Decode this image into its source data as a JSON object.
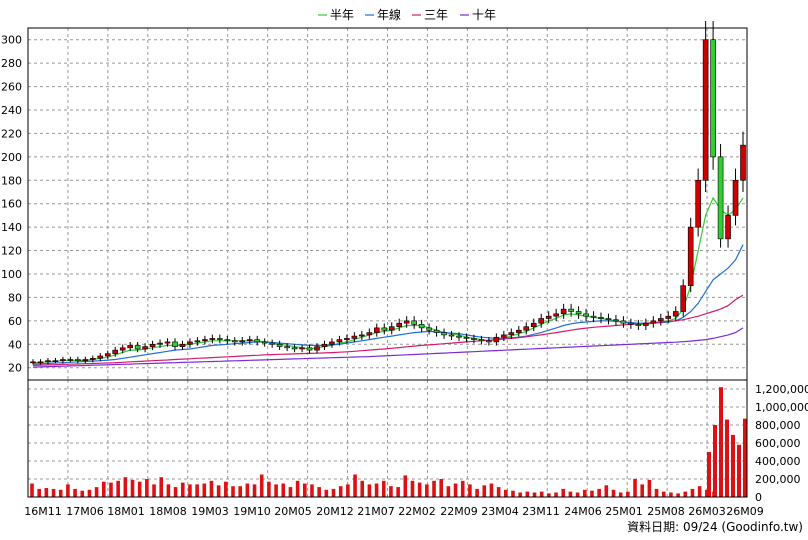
{
  "chart_data": {
    "type": "candlestick",
    "legend": {
      "placement": "top-center",
      "items": [
        {
          "label": "半年",
          "color": "#33cc33"
        },
        {
          "label": "年線",
          "color": "#1f6fd6"
        },
        {
          "label": "三年",
          "color": "#d61a6b"
        },
        {
          "label": "十年",
          "color": "#7a2bd6"
        }
      ]
    },
    "colors": {
      "up": "#cc0000",
      "down": "#33cc33",
      "volume": "#dd1111"
    },
    "grid": true,
    "x_ticks": [
      "16M11",
      "17M06",
      "18M01",
      "18M08",
      "19M03",
      "19M10",
      "20M05",
      "20M12",
      "21M07",
      "22M02",
      "22M09",
      "23M04",
      "23M11",
      "24M06",
      "25M01",
      "25M08",
      "26M03",
      "26M09"
    ],
    "price_axis": {
      "min": 20,
      "max": 310,
      "ticks": [
        20,
        40,
        60,
        80,
        100,
        120,
        140,
        160,
        180,
        200,
        220,
        240,
        260,
        280,
        300
      ]
    },
    "volume_axis": {
      "min": 0,
      "max": 1300000,
      "ticks": [
        "0",
        "200,000",
        "400,000",
        "600,000",
        "800,000",
        "1,000,000",
        "1,200,000"
      ],
      "tick_values": [
        0,
        200000,
        400000,
        600000,
        800000,
        1000000,
        1200000
      ]
    },
    "price_close": [
      25,
      25,
      26,
      26,
      27,
      27,
      26,
      27,
      28,
      30,
      32,
      35,
      37,
      39,
      36,
      38,
      40,
      41,
      42,
      38,
      40,
      42,
      43,
      44,
      45,
      44,
      43,
      42,
      43,
      44,
      42,
      41,
      40,
      38,
      37,
      36,
      37,
      35,
      38,
      40,
      42,
      44,
      45,
      47,
      48,
      50,
      54,
      52,
      55,
      58,
      60,
      57,
      54,
      52,
      50,
      48,
      47,
      46,
      45,
      44,
      43,
      42,
      46,
      48,
      50,
      52,
      55,
      58,
      62,
      64,
      66,
      70,
      68,
      66,
      64,
      63,
      62,
      61,
      60,
      58,
      57,
      56,
      58,
      60,
      62,
      64,
      68,
      90,
      140,
      180,
      300,
      200,
      130,
      150,
      180,
      210
    ],
    "ma_half": [
      24,
      24.5,
      25,
      25.5,
      26,
      26.5,
      26,
      26.5,
      27,
      28,
      29,
      31,
      33,
      35,
      35,
      36,
      37,
      38,
      39,
      39,
      39,
      40,
      41,
      42,
      43,
      43,
      43,
      43,
      43,
      43,
      43,
      42,
      41,
      40,
      39,
      38,
      37,
      36,
      37,
      38,
      39,
      41,
      42,
      44,
      46,
      48,
      50,
      51,
      52,
      54,
      56,
      56,
      56,
      54,
      52,
      50,
      49,
      48,
      46,
      45,
      44,
      43,
      44,
      45,
      47,
      49,
      51,
      54,
      57,
      60,
      62,
      65,
      66,
      65,
      64,
      63,
      62,
      61,
      60,
      59,
      58,
      57,
      57,
      58,
      59,
      60,
      62,
      70,
      90,
      120,
      150,
      165,
      155,
      150,
      155,
      165
    ],
    "ma_year": [
      23,
      23.3,
      23.6,
      24,
      24.3,
      24.6,
      25,
      25.3,
      25.6,
      26,
      26.5,
      27,
      28,
      29,
      30,
      31,
      32,
      33,
      34,
      35,
      35.5,
      36,
      37,
      38,
      39,
      39.5,
      40,
      40.5,
      41,
      41.5,
      42,
      42,
      41.5,
      41,
      40.5,
      40,
      39.5,
      39,
      39,
      39,
      39.5,
      40,
      41,
      42,
      43,
      44,
      45,
      46,
      47,
      48,
      49,
      50,
      50.5,
      51,
      50.5,
      50,
      49.5,
      49,
      48,
      47,
      46,
      45.5,
      45,
      45,
      45.5,
      46,
      47,
      48.5,
      50,
      52,
      54,
      56,
      57.5,
      58.5,
      59,
      59.5,
      60,
      60,
      59.5,
      59,
      58.5,
      58,
      58,
      58,
      58.5,
      59,
      60,
      63,
      68,
      75,
      85,
      95,
      100,
      105,
      112,
      125
    ],
    "ma_3yr": [
      22,
      22.2,
      22.4,
      22.6,
      22.8,
      23,
      23.2,
      23.4,
      23.6,
      23.8,
      24,
      24.3,
      24.6,
      25,
      25.3,
      25.6,
      26,
      26.3,
      26.6,
      27,
      27.3,
      27.6,
      28,
      28.3,
      28.6,
      29,
      29.3,
      29.6,
      30,
      30.3,
      30.6,
      31,
      31.2,
      31.4,
      31.6,
      31.8,
      32,
      32.2,
      32.4,
      32.6,
      32.9,
      33.2,
      33.6,
      34,
      34.5,
      35,
      35.5,
      36,
      36.6,
      37.2,
      37.8,
      38.4,
      39,
      39.5,
      40,
      40.5,
      41,
      41.5,
      42,
      42.5,
      43,
      43.5,
      44,
      44.5,
      45,
      45.7,
      46.4,
      47.2,
      48,
      49,
      50,
      51,
      52,
      53,
      53.8,
      54.5,
      55,
      55.5,
      56,
      56.5,
      57,
      57.5,
      58,
      58.5,
      59,
      59.5,
      60,
      61,
      62.5,
      64,
      66,
      68,
      70,
      73,
      78,
      82
    ],
    "ma_10yr": [
      20.5,
      20.7,
      20.9,
      21.1,
      21.3,
      21.5,
      21.7,
      21.9,
      22.1,
      22.3,
      22.5,
      22.7,
      22.9,
      23.1,
      23.3,
      23.5,
      23.7,
      23.9,
      24.1,
      24.3,
      24.5,
      24.7,
      24.9,
      25.1,
      25.3,
      25.5,
      25.7,
      25.9,
      26.1,
      26.3,
      26.5,
      26.7,
      26.9,
      27.1,
      27.3,
      27.5,
      27.7,
      27.9,
      28.1,
      28.3,
      28.5,
      28.7,
      28.9,
      29.1,
      29.3,
      29.5,
      29.8,
      30.1,
      30.4,
      30.7,
      31,
      31.3,
      31.6,
      31.9,
      32.2,
      32.5,
      32.8,
      33.1,
      33.4,
      33.7,
      34,
      34.3,
      34.6,
      34.9,
      35.2,
      35.5,
      35.8,
      36.1,
      36.4,
      36.7,
      37,
      37.3,
      37.6,
      37.9,
      38.2,
      38.5,
      38.8,
      39.1,
      39.4,
      39.7,
      40,
      40.3,
      40.6,
      40.9,
      41.2,
      41.5,
      41.8,
      42.2,
      42.7,
      43.3,
      44,
      45,
      46.5,
      48,
      50,
      54
    ],
    "volume": [
      150000,
      90000,
      100000,
      90000,
      80000,
      140000,
      90000,
      70000,
      80000,
      110000,
      170000,
      160000,
      180000,
      220000,
      190000,
      170000,
      200000,
      140000,
      220000,
      140000,
      110000,
      160000,
      140000,
      140000,
      150000,
      180000,
      130000,
      170000,
      120000,
      120000,
      150000,
      140000,
      250000,
      170000,
      140000,
      150000,
      110000,
      180000,
      150000,
      140000,
      110000,
      80000,
      90000,
      120000,
      140000,
      250000,
      180000,
      140000,
      150000,
      180000,
      120000,
      110000,
      240000,
      180000,
      160000,
      140000,
      180000,
      200000,
      120000,
      150000,
      180000,
      140000,
      90000,
      130000,
      150000,
      110000,
      80000,
      70000,
      50000,
      60000,
      50000,
      60000,
      40000,
      50000,
      90000,
      60000,
      50000,
      80000,
      70000,
      90000,
      130000,
      80000,
      50000,
      60000,
      200000,
      140000,
      190000,
      90000,
      60000,
      50000,
      40000,
      60000,
      90000,
      120000,
      80000,
      60000
    ],
    "volume_tail": [
      500000,
      800000,
      1220000,
      860000,
      690000,
      580000,
      870000
    ]
  },
  "source_note": "資料日期: 09/24  (Goodinfo.tw)"
}
